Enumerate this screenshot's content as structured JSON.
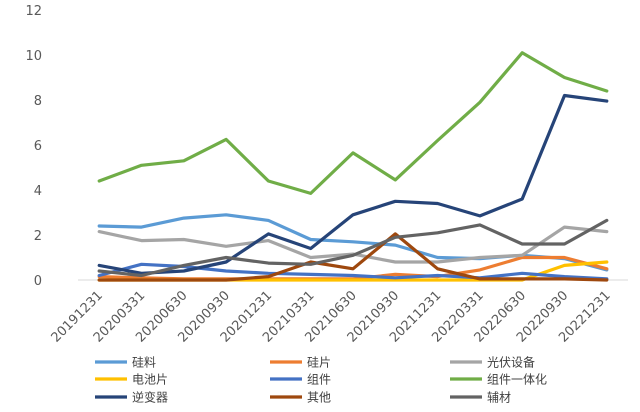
{
  "chart_data": {
    "type": "line",
    "title": "",
    "xlabel": "",
    "ylabel": "",
    "ylim": [
      0,
      12
    ],
    "yticks": [
      0,
      2,
      4,
      6,
      8,
      10,
      12
    ],
    "grid": false,
    "legend_position": "bottom",
    "categories": [
      "20191231",
      "20200331",
      "20200630",
      "20200930",
      "20201231",
      "20210331",
      "20210630",
      "20210930",
      "20211231",
      "20220331",
      "20220630",
      "20220930",
      "20221231"
    ],
    "series": [
      {
        "name": "硅料",
        "color": "#5b9bd5",
        "values": [
          2.4,
          2.35,
          2.75,
          2.9,
          2.65,
          1.8,
          1.7,
          1.55,
          1.0,
          0.95,
          1.1,
          0.95,
          0.45
        ]
      },
      {
        "name": "硅片",
        "color": "#ed7d31",
        "values": [
          0.15,
          0.1,
          0.05,
          0.05,
          0.05,
          0.05,
          0.05,
          0.25,
          0.15,
          0.45,
          1.0,
          1.0,
          0.5
        ]
      },
      {
        "name": "光伏设备",
        "color": "#a5a5a5",
        "values": [
          2.15,
          1.75,
          1.8,
          1.5,
          1.75,
          1.0,
          1.15,
          0.8,
          0.8,
          1.0,
          1.1,
          2.35,
          2.15
        ]
      },
      {
        "name": "电池片",
        "color": "#ffc000",
        "values": [
          0.0,
          0.0,
          0.0,
          0.0,
          0.0,
          0.0,
          0.0,
          0.0,
          0.0,
          0.0,
          0.0,
          0.65,
          0.8
        ]
      },
      {
        "name": "组件",
        "color": "#4472c4",
        "values": [
          0.2,
          0.7,
          0.6,
          0.4,
          0.3,
          0.25,
          0.2,
          0.1,
          0.2,
          0.1,
          0.3,
          0.15,
          0.05
        ]
      },
      {
        "name": "组件一体化",
        "color": "#70ad47",
        "values": [
          4.4,
          5.1,
          5.3,
          6.25,
          4.4,
          3.85,
          5.65,
          4.45,
          6.2,
          7.9,
          10.1,
          9.0,
          8.4
        ]
      },
      {
        "name": "逆变器",
        "color": "#264478",
        "values": [
          0.65,
          0.3,
          0.4,
          0.8,
          2.05,
          1.4,
          2.9,
          3.5,
          3.4,
          2.85,
          3.6,
          8.2,
          7.95
        ]
      },
      {
        "name": "其他",
        "color": "#9e480e",
        "values": [
          0.0,
          0.0,
          0.0,
          0.0,
          0.15,
          0.8,
          0.5,
          2.05,
          0.5,
          0.05,
          0.05,
          0.05,
          0.0
        ]
      },
      {
        "name": "辅材",
        "color": "#636363",
        "values": [
          0.4,
          0.2,
          0.65,
          1.0,
          0.75,
          0.7,
          1.1,
          1.9,
          2.1,
          2.45,
          1.6,
          1.6,
          2.65
        ]
      }
    ]
  }
}
